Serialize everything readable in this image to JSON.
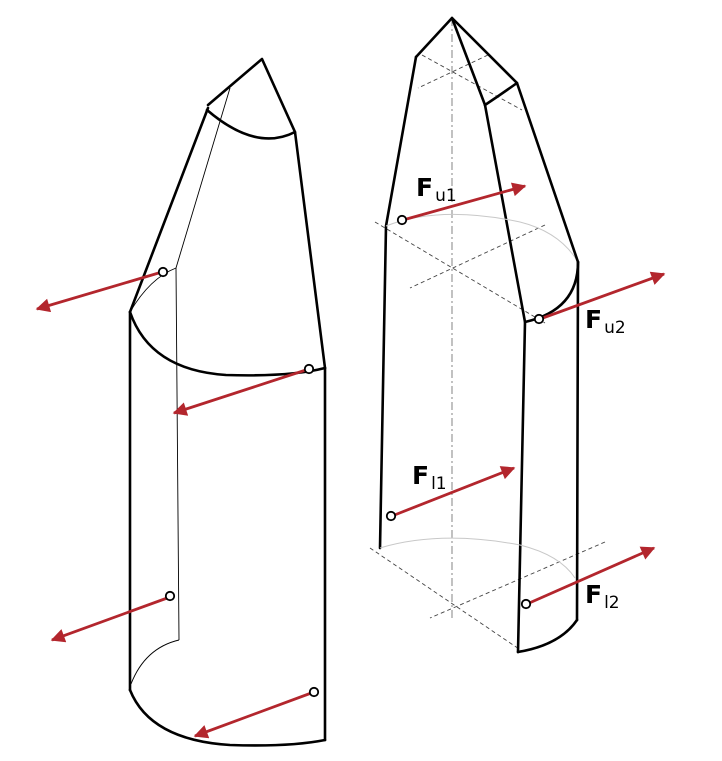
{
  "forces": [
    {
      "id": "u1",
      "letter": "F",
      "sub": "u1"
    },
    {
      "id": "u2",
      "letter": "F",
      "sub": "u2"
    },
    {
      "id": "l1",
      "letter": "F",
      "sub": "l1"
    },
    {
      "id": "l2",
      "letter": "F",
      "sub": "l2"
    }
  ],
  "colors": {
    "arrow": "#b3262d",
    "outline": "#000000",
    "construction": "#444444"
  }
}
